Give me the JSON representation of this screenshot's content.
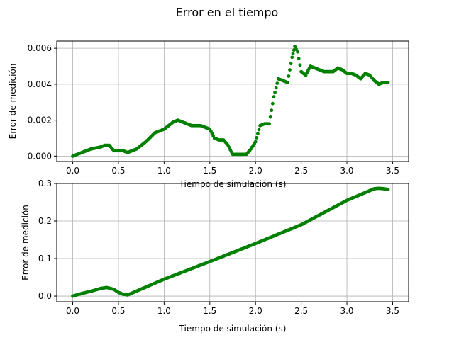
{
  "figure": {
    "title": "Error en el tiempo"
  },
  "colors": {
    "series": "#008000",
    "grid": "#b0b0b0",
    "axes": "#000000",
    "background": "#ffffff"
  },
  "chart_data": [
    {
      "type": "scatter",
      "xlabel": "Tiempo de simulación (s)",
      "ylabel": "Error de medición",
      "xlim": [
        -0.175,
        3.675
      ],
      "ylim": [
        -0.0003,
        0.0064
      ],
      "xticks": [
        0.0,
        0.5,
        1.0,
        1.5,
        2.0,
        2.5,
        3.0,
        3.5
      ],
      "xtick_labels": [
        "0.0",
        "0.5",
        "1.0",
        "1.5",
        "2.0",
        "2.5",
        "3.0",
        "3.5"
      ],
      "yticks": [
        0.0,
        0.002,
        0.004,
        0.006
      ],
      "ytick_labels": [
        "0.000",
        "0.002",
        "0.004",
        "0.006"
      ],
      "grid": true,
      "marker_color": "#008000",
      "x": [
        0.0,
        0.1,
        0.2,
        0.3,
        0.35,
        0.4,
        0.45,
        0.5,
        0.55,
        0.6,
        0.7,
        0.8,
        0.9,
        1.0,
        1.05,
        1.1,
        1.15,
        1.2,
        1.3,
        1.4,
        1.5,
        1.55,
        1.6,
        1.65,
        1.7,
        1.75,
        1.8,
        1.85,
        1.9,
        1.95,
        2.0,
        2.05,
        2.1,
        2.15,
        2.2,
        2.25,
        2.3,
        2.35,
        2.4,
        2.43,
        2.46,
        2.5,
        2.55,
        2.6,
        2.65,
        2.7,
        2.75,
        2.8,
        2.85,
        2.9,
        2.95,
        3.0,
        3.05,
        3.1,
        3.15,
        3.2,
        3.25,
        3.3,
        3.35,
        3.4,
        3.45
      ],
      "y": [
        0.0,
        0.0002,
        0.0004,
        0.0005,
        0.0006,
        0.0006,
        0.0003,
        0.0003,
        0.0003,
        0.0002,
        0.0004,
        0.0008,
        0.0013,
        0.0015,
        0.0017,
        0.0019,
        0.002,
        0.0019,
        0.0017,
        0.0017,
        0.0015,
        0.001,
        0.0009,
        0.0009,
        0.0006,
        0.0001,
        0.0001,
        0.0001,
        0.0001,
        0.0004,
        0.0008,
        0.0017,
        0.0018,
        0.0018,
        0.0033,
        0.0043,
        0.0042,
        0.0041,
        0.0055,
        0.0061,
        0.0058,
        0.0047,
        0.0045,
        0.005,
        0.0049,
        0.0048,
        0.0047,
        0.0047,
        0.0047,
        0.0049,
        0.0048,
        0.0046,
        0.0046,
        0.0045,
        0.0043,
        0.0046,
        0.0045,
        0.0042,
        0.004,
        0.0041,
        0.0041
      ]
    },
    {
      "type": "scatter",
      "xlabel": "Tiempo de simulación (s)",
      "ylabel": "Error de medición",
      "xlim": [
        -0.175,
        3.675
      ],
      "ylim": [
        -0.015,
        0.3
      ],
      "xticks": [
        0.0,
        0.5,
        1.0,
        1.5,
        2.0,
        2.5,
        3.0,
        3.5
      ],
      "xtick_labels": [
        "0.0",
        "0.5",
        "1.0",
        "1.5",
        "2.0",
        "2.5",
        "3.0",
        "3.5"
      ],
      "yticks": [
        0.0,
        0.1,
        0.2,
        0.3
      ],
      "ytick_labels": [
        "0.0",
        "0.1",
        "0.2",
        "0.3"
      ],
      "grid": true,
      "marker_color": "#008000",
      "x": [
        0.0,
        0.1,
        0.2,
        0.3,
        0.37,
        0.45,
        0.5,
        0.55,
        0.6,
        0.8,
        1.0,
        1.5,
        2.0,
        2.5,
        3.0,
        3.3,
        3.35,
        3.4,
        3.45
      ],
      "y": [
        0.0,
        0.007,
        0.013,
        0.02,
        0.023,
        0.018,
        0.01,
        0.005,
        0.003,
        0.024,
        0.045,
        0.092,
        0.14,
        0.19,
        0.255,
        0.286,
        0.287,
        0.286,
        0.284
      ]
    }
  ]
}
